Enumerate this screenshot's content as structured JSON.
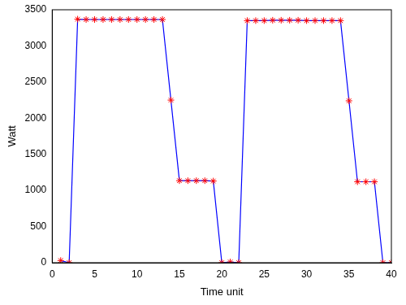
{
  "chart_data": {
    "type": "line",
    "x_label": "Time unit",
    "y_label": "Watt",
    "x": [
      1,
      2,
      3,
      4,
      5,
      6,
      7,
      8,
      9,
      10,
      11,
      12,
      13,
      14,
      15,
      16,
      17,
      18,
      19,
      20,
      21,
      22,
      23,
      24,
      25,
      26,
      27,
      28,
      29,
      30,
      31,
      32,
      33,
      34,
      35,
      36,
      37,
      38,
      39,
      40
    ],
    "series": [
      {
        "color": "#0000ff",
        "marker": "star",
        "line_style": "solid",
        "values": [
          30,
          0,
          3370,
          3365,
          3365,
          3365,
          3365,
          3365,
          3365,
          3365,
          3365,
          3365,
          3365,
          2250,
          1135,
          1135,
          1135,
          1135,
          1130,
          0,
          10,
          0,
          3350,
          3350,
          3350,
          3355,
          3355,
          3355,
          3355,
          3350,
          3350,
          3350,
          3350,
          3350,
          2240,
          1120,
          1120,
          1120,
          0,
          0
        ]
      }
    ],
    "xlim": [
      0,
      40
    ],
    "xticks": [
      0,
      5,
      10,
      15,
      20,
      25,
      30,
      35,
      40
    ],
    "ylim": [
      0,
      3500
    ],
    "yticks": [
      0,
      500,
      1000,
      1500,
      2000,
      2500,
      3000,
      3500
    ],
    "grid": false
  }
}
